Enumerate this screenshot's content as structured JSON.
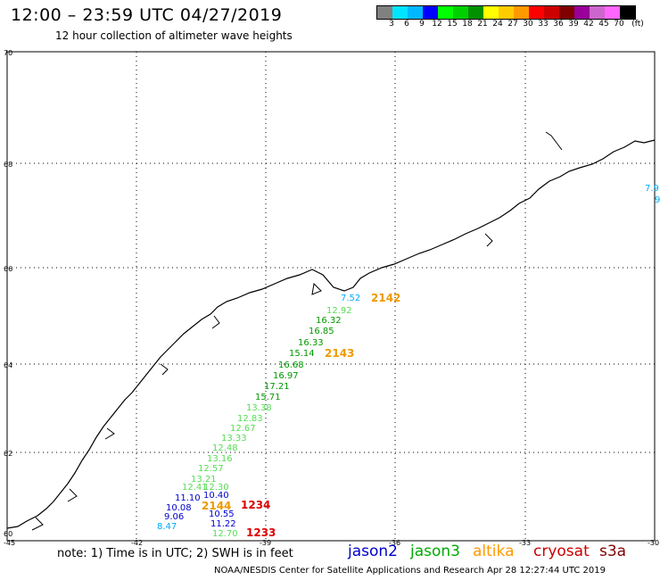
{
  "title": "12:00 – 23:59 UTC 04/27/2019",
  "subtitle": "12 hour collection of altimeter wave heights",
  "colorbar": {
    "colors": [
      "#808080",
      "#00e5ff",
      "#00b8ff",
      "#0000ff",
      "#00ff00",
      "#00d000",
      "#009000",
      "#ffff00",
      "#ffcc00",
      "#ff9900",
      "#ff0000",
      "#cc0000",
      "#800000",
      "#990099",
      "#cc66cc",
      "#ff66ff",
      "#000000"
    ],
    "labels": [
      "3",
      "6",
      "9",
      "12",
      "15",
      "18",
      "21",
      "24",
      "27",
      "30",
      "33",
      "36",
      "39",
      "42",
      "45",
      "70",
      "(ft)"
    ]
  },
  "axes": {
    "lat_labels": [
      "70",
      "68",
      "66",
      "64",
      "62",
      "60"
    ],
    "lon_labels": [
      "-45",
      "-42",
      "-39",
      "-36",
      "-33",
      "-30"
    ]
  },
  "tracks": {
    "jason3": [
      "12.92",
      "16.32",
      "16.85",
      "16.33",
      "15.14",
      "16.68",
      "16.97",
      "17.21",
      "15.71",
      "13.38",
      "12.83",
      "12.67",
      "13.33",
      "12.48",
      "13.16",
      "12.57",
      "13.21",
      "12.41",
      "12.30",
      "12.70"
    ],
    "jason2": [
      "11.10",
      "10.40",
      "10.08",
      "9.06",
      "10.55",
      "11.22"
    ],
    "altika_ids": [
      "2142",
      "2143",
      "2144"
    ],
    "cryosat_ids": [
      "1234",
      "1233"
    ],
    "cyan_values": [
      "7.52",
      "8.47",
      "7.9",
      "9"
    ]
  },
  "note": "note: 1) Time is in UTC; 2) SWH is in feet",
  "satellites": [
    {
      "name": "jason2",
      "color": "#0000cc"
    },
    {
      "name": "jason3",
      "color": "#00aa00"
    },
    {
      "name": "altika",
      "color": "#ff9900"
    },
    {
      "name": "cryosat",
      "color": "#cc0000"
    },
    {
      "name": "s3a",
      "color": "#800000"
    }
  ],
  "footer": "NOAA/NESDIS Center for Satellite Applications and Research   Apr 28 12:27:44 UTC 2019"
}
